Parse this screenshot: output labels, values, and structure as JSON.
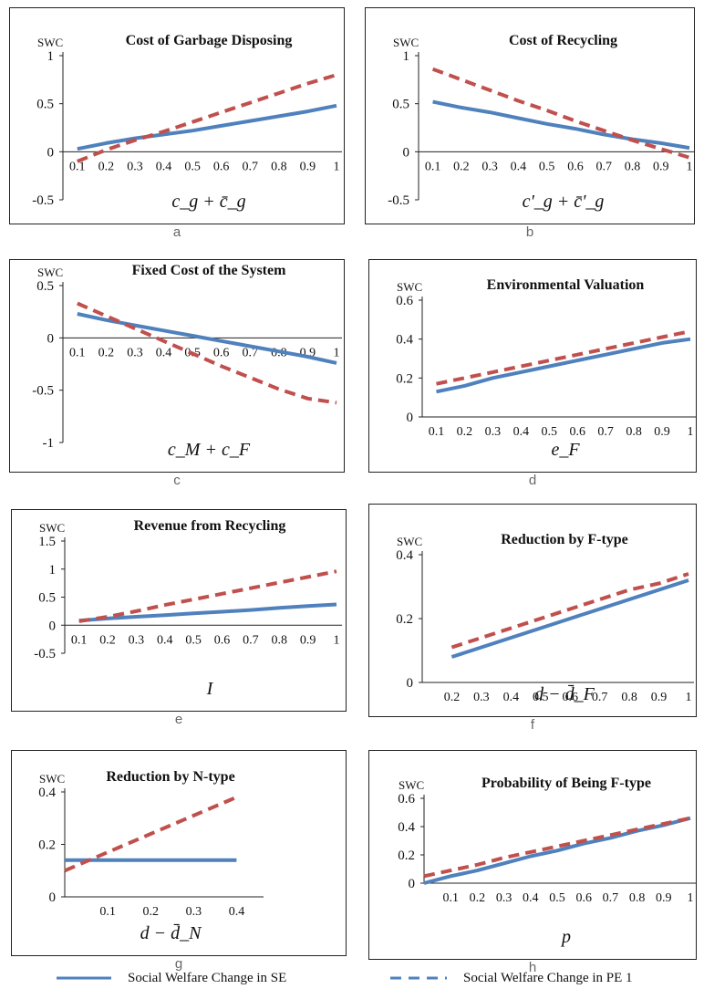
{
  "chart_data": [
    {
      "id": "a",
      "type": "line",
      "title": "Cost of Garbage Disposing",
      "ylabel": "SWC",
      "xlabel": "c_g + c̄_g",
      "xlabel_main": "c",
      "xlabel_sub": "g",
      "xlabel_op": "+",
      "xlabel_bar": "c",
      "xlabel_bar_sub": "g",
      "sublabel": "a",
      "x": [
        0.1,
        0.2,
        0.3,
        0.4,
        0.5,
        0.6,
        0.7,
        0.8,
        0.9,
        1
      ],
      "x_ticks": [
        "0.1",
        "0.2",
        "0.3",
        "0.4",
        "0.5",
        "0.6",
        "0.7",
        "0.8",
        "0.9",
        "1"
      ],
      "y_ticks": [
        "1",
        "0.5",
        "0",
        "-0.5"
      ],
      "ylim": [
        -0.5,
        1
      ],
      "series": [
        {
          "name": "Social Welfare Change in SE",
          "style": "solid",
          "values": [
            0.03,
            0.09,
            0.14,
            0.18,
            0.22,
            0.27,
            0.32,
            0.37,
            0.42,
            0.48
          ]
        },
        {
          "name": "Social Welfare Change in PE 1",
          "style": "dashed",
          "values": [
            -0.1,
            0.02,
            0.12,
            0.21,
            0.31,
            0.41,
            0.51,
            0.61,
            0.71,
            0.8
          ]
        }
      ]
    },
    {
      "id": "b",
      "type": "line",
      "title": "Cost of Recycling",
      "ylabel": "SWC",
      "xlabel": "c'_g + c̄'_g",
      "sublabel": "b",
      "x": [
        0.1,
        0.2,
        0.3,
        0.4,
        0.5,
        0.6,
        0.7,
        0.8,
        0.9,
        1
      ],
      "x_ticks": [
        "0.1",
        "0.2",
        "0.3",
        "0.4",
        "0.5",
        "0.6",
        "0.7",
        "0.8",
        "0.9",
        "1"
      ],
      "y_ticks": [
        "1",
        "0.5",
        "0",
        "-0.5"
      ],
      "ylim": [
        -0.5,
        1
      ],
      "series": [
        {
          "name": "Social Welfare Change in SE",
          "style": "solid",
          "values": [
            0.52,
            0.46,
            0.41,
            0.35,
            0.29,
            0.24,
            0.18,
            0.13,
            0.09,
            0.04
          ]
        },
        {
          "name": "Social Welfare Change in PE 1",
          "style": "dashed",
          "values": [
            0.86,
            0.75,
            0.64,
            0.53,
            0.43,
            0.32,
            0.22,
            0.12,
            0.03,
            -0.06
          ]
        }
      ]
    },
    {
      "id": "c",
      "type": "line",
      "title": "Fixed Cost of the System",
      "ylabel": "SWC",
      "xlabel": "c_M + c_F",
      "sublabel": "c",
      "x": [
        0.1,
        0.2,
        0.3,
        0.4,
        0.5,
        0.6,
        0.7,
        0.8,
        0.9,
        1
      ],
      "x_ticks": [
        "0.1",
        "0.2",
        "0.3",
        "0.4",
        "0.5",
        "0.6",
        "0.7",
        "0.8",
        "0.9",
        "1"
      ],
      "y_ticks": [
        "0.5",
        "0",
        "-0.5",
        "-1"
      ],
      "ylim": [
        -1,
        0.5
      ],
      "series": [
        {
          "name": "Social Welfare Change in SE",
          "style": "solid",
          "values": [
            0.23,
            0.17,
            0.12,
            0.07,
            0.02,
            -0.03,
            -0.08,
            -0.13,
            -0.18,
            -0.24
          ]
        },
        {
          "name": "Social Welfare Change in PE 1",
          "style": "dashed",
          "values": [
            0.33,
            0.21,
            0.09,
            -0.03,
            -0.15,
            -0.27,
            -0.38,
            -0.49,
            -0.58,
            -0.62
          ]
        }
      ]
    },
    {
      "id": "d",
      "type": "line",
      "title": "Environmental Valuation",
      "ylabel": "SWC",
      "xlabel": "e_F",
      "sublabel": "d",
      "x": [
        0.1,
        0.2,
        0.3,
        0.4,
        0.5,
        0.6,
        0.7,
        0.8,
        0.9,
        1
      ],
      "x_ticks": [
        "0.1",
        "0.2",
        "0.3",
        "0.4",
        "0.5",
        "0.6",
        "0.7",
        "0.8",
        "0.9",
        "1"
      ],
      "y_ticks": [
        "0.6",
        "0.4",
        "0.2",
        "0"
      ],
      "ylim": [
        0,
        0.6
      ],
      "series": [
        {
          "name": "Social Welfare Change in SE",
          "style": "solid",
          "values": [
            0.13,
            0.16,
            0.2,
            0.23,
            0.26,
            0.29,
            0.32,
            0.35,
            0.38,
            0.4
          ]
        },
        {
          "name": "Social Welfare Change in PE 1",
          "style": "dashed",
          "values": [
            0.17,
            0.2,
            0.23,
            0.26,
            0.29,
            0.32,
            0.35,
            0.38,
            0.41,
            0.44
          ]
        }
      ]
    },
    {
      "id": "e",
      "type": "line",
      "title": "Revenue from Recycling",
      "ylabel": "SWC",
      "xlabel": "I",
      "sublabel": "e",
      "x": [
        0.1,
        0.2,
        0.3,
        0.4,
        0.5,
        0.6,
        0.7,
        0.8,
        0.9,
        1
      ],
      "x_ticks": [
        "0.1",
        "0.2",
        "0.3",
        "0.4",
        "0.5",
        "0.6",
        "0.7",
        "0.8",
        "0.9",
        "1"
      ],
      "y_ticks": [
        "1.5",
        "1",
        "0.5",
        "0",
        "-0.5"
      ],
      "ylim": [
        -0.5,
        1.5
      ],
      "series": [
        {
          "name": "Social Welfare Change in SE",
          "style": "solid",
          "values": [
            0.08,
            0.12,
            0.15,
            0.18,
            0.21,
            0.24,
            0.27,
            0.31,
            0.34,
            0.37
          ]
        },
        {
          "name": "Social Welfare Change in PE 1",
          "style": "dashed",
          "values": [
            0.07,
            0.15,
            0.25,
            0.36,
            0.46,
            0.56,
            0.66,
            0.76,
            0.86,
            0.96
          ]
        }
      ]
    },
    {
      "id": "f",
      "type": "line",
      "title": "Reduction by F-type",
      "ylabel": "SWC",
      "xlabel": "d − d̄_F",
      "sublabel": "f",
      "x": [
        0.2,
        0.3,
        0.4,
        0.5,
        0.6,
        0.7,
        0.8,
        0.9,
        1
      ],
      "x_ticks": [
        "0.2",
        "0.3",
        "0.4",
        "0.5",
        "0.6",
        "0.7",
        "0.8",
        "0.9",
        "1"
      ],
      "y_ticks": [
        "0.4",
        "0.2",
        "0"
      ],
      "ylim": [
        0,
        0.4
      ],
      "series": [
        {
          "name": "Social Welfare Change in SE",
          "style": "solid",
          "values": [
            0.08,
            0.11,
            0.14,
            0.17,
            0.2,
            0.23,
            0.26,
            0.29,
            0.32
          ]
        },
        {
          "name": "Social Welfare Change in PE 1",
          "style": "dashed",
          "values": [
            0.11,
            0.14,
            0.17,
            0.2,
            0.23,
            0.26,
            0.29,
            0.31,
            0.34
          ]
        }
      ]
    },
    {
      "id": "g",
      "type": "line",
      "title": "Reduction by N-type",
      "ylabel": "SWC",
      "xlabel": "d − d̄_N",
      "sublabel": "g",
      "x": [
        0.0,
        0.1,
        0.2,
        0.3,
        0.4
      ],
      "x_ticks": [
        "0.1",
        "0.2",
        "0.3",
        "0.4"
      ],
      "y_ticks": [
        "0.4",
        "0.2",
        "0"
      ],
      "ylim": [
        0,
        0.4
      ],
      "series": [
        {
          "name": "Social Welfare Change in SE",
          "style": "solid",
          "values": [
            0.14,
            0.14,
            0.14,
            0.14,
            0.14
          ]
        },
        {
          "name": "Social Welfare Change in PE 1",
          "style": "dashed",
          "values": [
            0.1,
            0.17,
            0.24,
            0.31,
            0.38
          ]
        }
      ]
    },
    {
      "id": "h",
      "type": "line",
      "title": "Probability of Being F-type",
      "ylabel": "SWC",
      "xlabel": "p",
      "sublabel": "h",
      "x": [
        0.0,
        0.1,
        0.2,
        0.3,
        0.4,
        0.5,
        0.6,
        0.7,
        0.8,
        0.9,
        1
      ],
      "x_ticks": [
        "0.1",
        "0.2",
        "0.3",
        "0.4",
        "0.5",
        "0.6",
        "0.7",
        "0.8",
        "0.9",
        "1"
      ],
      "y_ticks": [
        "0.6",
        "0.4",
        "0.2",
        "0"
      ],
      "ylim": [
        0,
        0.6
      ],
      "series": [
        {
          "name": "Social Welfare Change in SE",
          "style": "solid",
          "values": [
            0.0,
            0.05,
            0.09,
            0.14,
            0.19,
            0.23,
            0.28,
            0.32,
            0.37,
            0.41,
            0.46
          ]
        },
        {
          "name": "Social Welfare Change in PE 1",
          "style": "dashed",
          "values": [
            0.05,
            0.09,
            0.13,
            0.18,
            0.22,
            0.26,
            0.3,
            0.34,
            0.38,
            0.42,
            0.46
          ]
        }
      ]
    }
  ],
  "legend": {
    "items": [
      {
        "label": "Social Welfare Change in SE",
        "style": "solid"
      },
      {
        "label": "Social Welfare Change in PE 1",
        "style": "dashed"
      }
    ]
  },
  "colors": {
    "solid": "#4f81bd",
    "dashed": "#c0504d",
    "axis": "#222222",
    "text": "#111111"
  }
}
